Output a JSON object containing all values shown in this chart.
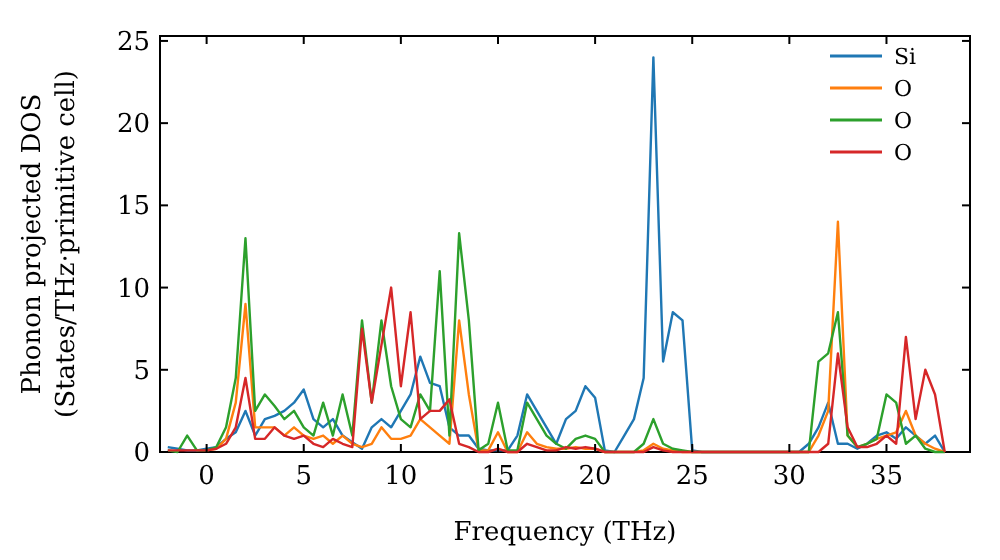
{
  "chart_data": {
    "type": "line",
    "xlabel": "Frequency (THz)",
    "ylabel": "Phonon projected DOS\n(States/THz·primitive cell)",
    "x": [
      -2,
      -1.5,
      -1,
      -0.5,
      0,
      0.5,
      1,
      1.5,
      2,
      2.5,
      3,
      3.5,
      4,
      4.5,
      5,
      5.5,
      6,
      6.5,
      7,
      7.5,
      8,
      8.5,
      9,
      9.5,
      10,
      10.5,
      11,
      11.5,
      12,
      12.5,
      13,
      13.5,
      14,
      14.5,
      15,
      15.5,
      16,
      16.5,
      17,
      17.5,
      18,
      18.5,
      19,
      19.5,
      20,
      20.5,
      21,
      21.5,
      22,
      22.5,
      23,
      23.5,
      24,
      24.5,
      25,
      25.5,
      26,
      26.5,
      27,
      27.5,
      28,
      28.5,
      29,
      29.5,
      30,
      30.5,
      31,
      31.5,
      32,
      32.5,
      33,
      33.5,
      34,
      34.5,
      35,
      35.5,
      36,
      36.5,
      37,
      37.5,
      38
    ],
    "series": [
      {
        "name": "Si",
        "color": "#1f77b4",
        "values": [
          0.3,
          0.2,
          0.1,
          0.1,
          0.2,
          0.3,
          0.8,
          1.2,
          2.5,
          1.0,
          2.0,
          2.2,
          2.5,
          3.0,
          3.8,
          2.0,
          1.5,
          2.0,
          1.0,
          0.6,
          0.2,
          1.5,
          2.0,
          1.5,
          2.5,
          3.5,
          5.8,
          4.2,
          4.0,
          1.5,
          1.0,
          1.0,
          0.2,
          0.1,
          0.1,
          0.1,
          1.0,
          3.5,
          2.5,
          1.5,
          0.5,
          2.0,
          2.5,
          4.0,
          3.3,
          0.1,
          0,
          1.0,
          2.0,
          4.5,
          24,
          5.5,
          8.5,
          8,
          0.1,
          0,
          0,
          0,
          0,
          0,
          0,
          0,
          0,
          0,
          0,
          0,
          0.5,
          1.5,
          3,
          0.5,
          0.5,
          0.2,
          0.5,
          1.0,
          1.2,
          0.8,
          1.5,
          1.0,
          0.5,
          1.0,
          0
        ]
      },
      {
        "name": "O",
        "color": "#ff7f0e",
        "values": [
          null,
          null,
          null,
          null,
          0.1,
          0.2,
          0.8,
          3,
          9,
          1.5,
          1.5,
          1.5,
          1.0,
          1.5,
          1.0,
          0.8,
          1.0,
          0.5,
          1.0,
          0.5,
          0.3,
          0.5,
          1.5,
          0.8,
          0.8,
          1.0,
          2.0,
          1.5,
          1.0,
          0.5,
          8,
          3.5,
          0.1,
          0.1,
          1.2,
          0,
          0,
          1.2,
          0.5,
          0.3,
          0.2,
          0.2,
          0.3,
          0.2,
          0.2,
          0,
          0,
          0,
          0,
          0.1,
          0.5,
          0.2,
          0.1,
          0,
          0,
          0,
          0,
          0,
          0,
          0,
          0,
          0,
          0,
          0,
          0,
          0,
          0,
          1,
          2.5,
          14,
          1,
          0.3,
          0.5,
          0.8,
          1.0,
          1.2,
          2.5,
          1.0,
          0.5,
          0.2,
          0
        ]
      },
      {
        "name": "O",
        "color": "#2ca02c",
        "values": [
          0.1,
          0,
          1,
          0.1,
          0.1,
          0.3,
          1.5,
          4.5,
          13,
          2.5,
          3.5,
          2.8,
          2.0,
          2.5,
          1.5,
          1.0,
          3.0,
          1.0,
          3.5,
          1.0,
          8,
          3.0,
          8,
          4.0,
          2.0,
          1.5,
          3.5,
          2.5,
          11,
          1.0,
          13.3,
          8,
          0.1,
          0.5,
          3,
          0.1,
          0.1,
          3,
          2,
          1,
          0.5,
          0.2,
          0.8,
          1,
          0.8,
          0,
          0,
          0,
          0,
          0.5,
          2.0,
          0.5,
          0.2,
          0.1,
          0,
          0,
          0,
          0,
          0,
          0,
          0,
          0,
          0,
          0,
          0,
          0,
          0,
          5.5,
          6,
          8.5,
          1,
          0.3,
          0.5,
          0.8,
          3.5,
          3,
          0.5,
          1,
          0.2,
          0,
          0
        ]
      },
      {
        "name": "O",
        "color": "#d62728",
        "values": [
          0.1,
          0.1,
          0.1,
          0.1,
          0.1,
          0.2,
          0.5,
          1.5,
          4.5,
          0.8,
          0.8,
          1.5,
          1.0,
          0.8,
          1.0,
          0.5,
          0.3,
          0.8,
          0.5,
          0.3,
          7.5,
          3,
          6.5,
          10,
          4,
          8.5,
          2.0,
          2.5,
          2.5,
          3.2,
          0.5,
          0.3,
          0,
          0,
          0.2,
          0,
          0,
          0.5,
          0.3,
          0.1,
          0.1,
          0.3,
          0.2,
          0.3,
          0.2,
          0,
          0,
          0,
          0,
          0,
          0.3,
          0.1,
          0,
          0,
          0,
          0,
          0,
          0,
          0,
          0,
          0,
          0,
          0,
          0,
          0,
          0,
          0,
          0,
          0.5,
          6,
          1.5,
          0.3,
          0.3,
          0.5,
          1.0,
          0.5,
          7,
          2,
          5,
          3.5,
          0
        ]
      }
    ],
    "xlim": [
      -2.4,
      39.3
    ],
    "ylim": [
      0,
      25.3
    ],
    "xticks": [
      0,
      5,
      10,
      15,
      20,
      25,
      30,
      35
    ],
    "yticks": [
      0,
      5,
      10,
      15,
      20,
      25
    ],
    "grid": false,
    "legend": "top right",
    "marker": "none",
    "line_style": "solid"
  }
}
